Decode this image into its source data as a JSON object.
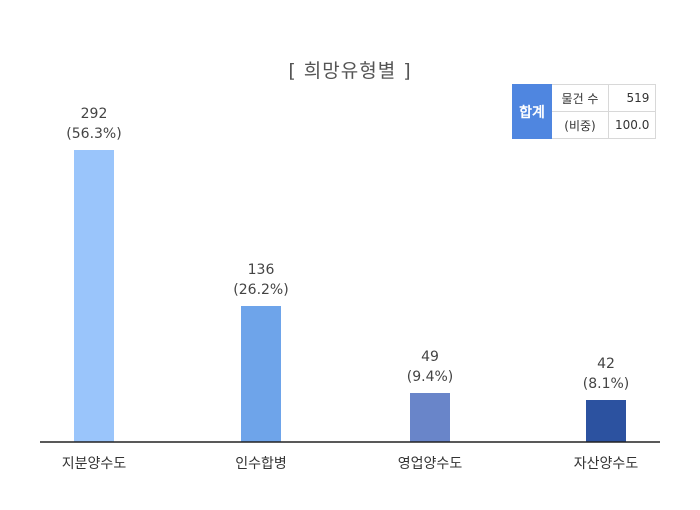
{
  "title": "[ 희망유형별 ]",
  "summary": {
    "header": "합계",
    "rows": [
      {
        "label": "물건 수",
        "value": "519"
      },
      {
        "label": "(비중)",
        "value": "100.0"
      }
    ]
  },
  "chart_data": {
    "type": "bar",
    "title": "[ 희망유형별 ]",
    "categories": [
      "지분양수도",
      "인수합병",
      "영업양수도",
      "자산양수도"
    ],
    "values": [
      292,
      136,
      49,
      42
    ],
    "percent_labels": [
      "(56.3%)",
      "(26.2%)",
      "(9.4%)",
      "(8.1%)"
    ],
    "value_labels": [
      "292",
      "136",
      "49",
      "42"
    ],
    "colors": [
      "#9ac5fb",
      "#6ea4ea",
      "#6985c9",
      "#2c52a0"
    ],
    "ylim": [
      0,
      292
    ],
    "grid": false,
    "legend": "none"
  }
}
